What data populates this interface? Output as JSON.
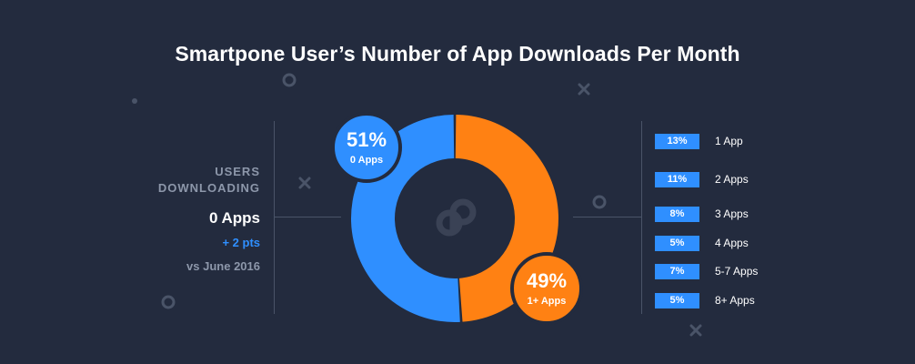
{
  "colors": {
    "background": "#232b3e",
    "blue": "#2f8fff",
    "orange": "#ff8113",
    "line": "#4a5468",
    "muted": "#8d97aa",
    "logo": "#3a4255"
  },
  "chart_data": {
    "type": "pie",
    "variant": "donut",
    "title": "Smartpone User’s Number of App Downloads Per Month",
    "series": [
      {
        "name": "0 Apps",
        "value": 51,
        "label": "51%",
        "sublabel": "0 Apps",
        "color": "#2f8fff"
      },
      {
        "name": "1+ Apps",
        "value": 49,
        "label": "49%",
        "sublabel": "1+ Apps",
        "color": "#ff8113"
      }
    ],
    "breakdown": {
      "type": "table",
      "rows": [
        {
          "value": 13,
          "label": "13%",
          "category": "1 App"
        },
        {
          "value": 11,
          "label": "11%",
          "category": "2 Apps"
        },
        {
          "value": 8,
          "label": "8%",
          "category": "3 Apps"
        },
        {
          "value": 5,
          "label": "5%",
          "category": "4 Apps"
        },
        {
          "value": 7,
          "label": "7%",
          "category": "5-7 Apps"
        },
        {
          "value": 5,
          "label": "5%",
          "category": "8+ Apps"
        }
      ]
    }
  },
  "callout": {
    "line1": "USERS",
    "line2": "DOWNLOADING",
    "category": "0 Apps",
    "change": "+ 2 pts",
    "comparison": "vs June 2016"
  },
  "logo": {
    "icon": "app-logo-icon"
  },
  "decorations": [
    {
      "shape": "dot"
    },
    {
      "shape": "ring"
    },
    {
      "shape": "cross"
    },
    {
      "shape": "cross"
    },
    {
      "shape": "ring"
    },
    {
      "shape": "ring"
    },
    {
      "shape": "cross"
    }
  ]
}
